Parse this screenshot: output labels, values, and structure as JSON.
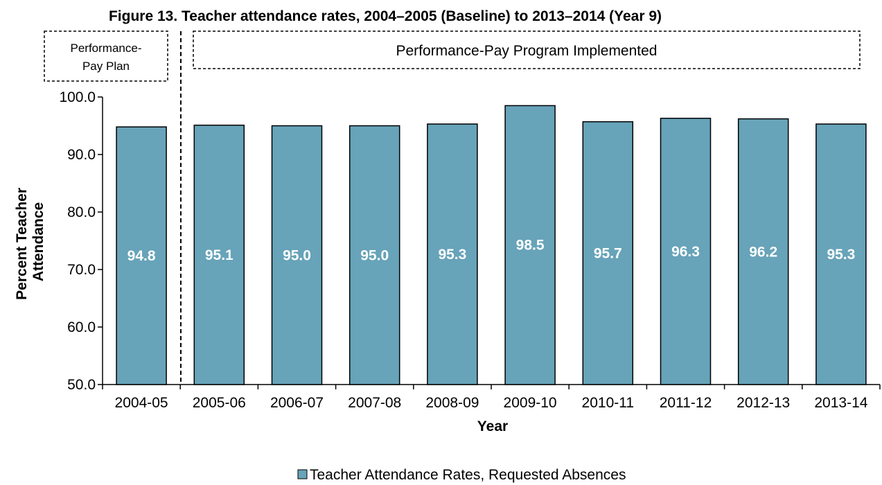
{
  "chart_data": {
    "type": "bar",
    "title": "Figure 13. Teacher attendance rates, 2004–2005 (Baseline) to 2013–2014 (Year 9)",
    "xlabel": "Year",
    "ylabel": "Percent Teacher Attendance",
    "ylim": [
      50.0,
      100.0
    ],
    "yticks": [
      "50.0",
      "60.0",
      "70.0",
      "80.0",
      "90.0",
      "100.0"
    ],
    "categories": [
      "2004-05",
      "2005-06",
      "2006-07",
      "2007-08",
      "2008-09",
      "2009-10",
      "2010-11",
      "2011-12",
      "2012-13",
      "2013-14"
    ],
    "series": [
      {
        "name": "Teacher Attendance Rates, Requested Absences",
        "values": [
          94.8,
          95.1,
          95.0,
          95.0,
          95.3,
          98.5,
          95.7,
          96.3,
          96.2,
          95.3
        ],
        "labels": [
          "94.8",
          "95.1",
          "95.0",
          "95.0",
          "95.3",
          "98.5",
          "95.7",
          "96.3",
          "96.2",
          "95.3"
        ],
        "color": "#67a3b9"
      }
    ],
    "annotations": {
      "baseline_line1": "Performance-",
      "baseline_line2": "Pay Plan",
      "implemented": "Performance-Pay Program Implemented"
    },
    "legend_position": "bottom",
    "grid": false
  }
}
